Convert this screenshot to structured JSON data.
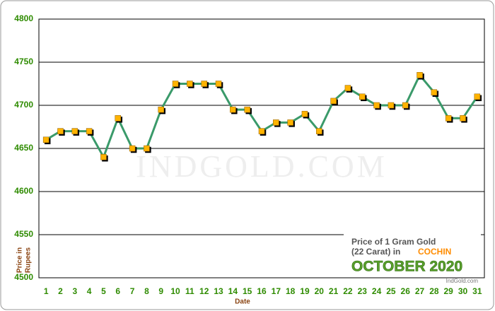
{
  "chart_data": {
    "type": "line",
    "annotations": {
      "line1": "Price of 1 Gram Gold",
      "line2": "(22 Carat) in",
      "city": "COCHIN",
      "month": "OCTOBER 2020",
      "source": "IndGold.com"
    },
    "watermark": "IndGold.com",
    "y_label": [
      "Price in",
      "Rupees"
    ],
    "x_label": "Date",
    "categories": [
      "1",
      "2",
      "3",
      "4",
      "5",
      "6",
      "7",
      "8",
      "9",
      "10",
      "11",
      "12",
      "13",
      "14",
      "15",
      "16",
      "17",
      "18",
      "19",
      "20",
      "21",
      "22",
      "23",
      "24",
      "25",
      "26",
      "27",
      "28",
      "29",
      "30",
      "31"
    ],
    "series": [
      {
        "color": "#3a9a6a",
        "marker_color": "#ffb300",
        "values": [
          4660,
          4670,
          4670,
          4670,
          4640,
          4685,
          4650,
          4650,
          4695,
          4725,
          4725,
          4725,
          4725,
          4695,
          4695,
          4670,
          4680,
          4680,
          4690,
          4670,
          4705,
          4720,
          4710,
          4700,
          4700,
          4700,
          4735,
          4715,
          4685,
          4685,
          4710
        ]
      }
    ],
    "ylim": [
      4500,
      4800
    ],
    "yticks": [
      4500,
      4550,
      4600,
      4650,
      4700,
      4750,
      4800
    ],
    "grid": true
  }
}
